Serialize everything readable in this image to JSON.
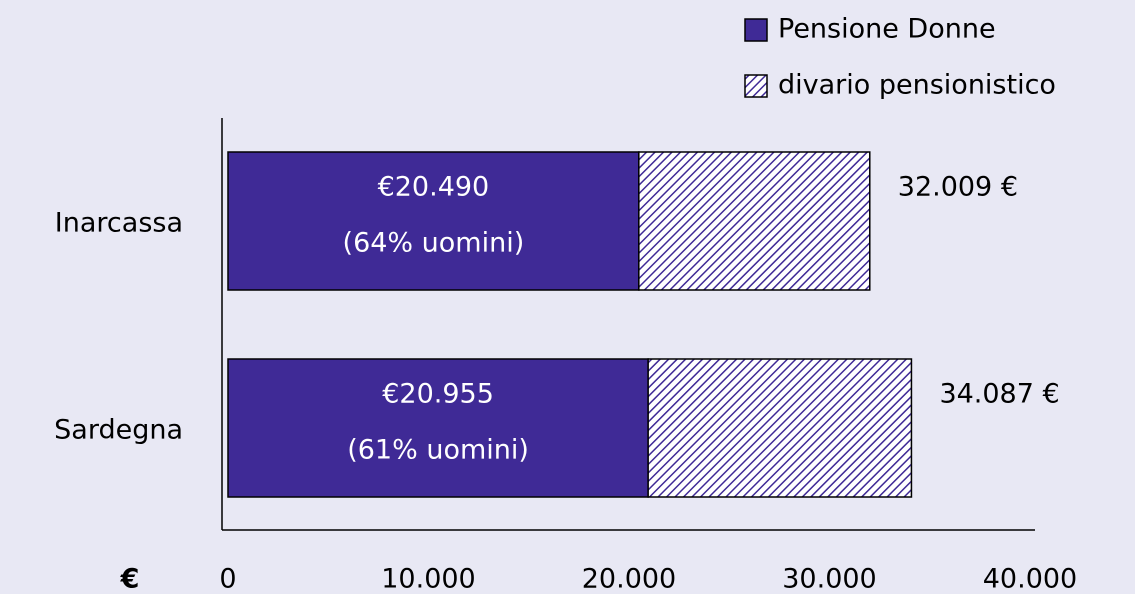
{
  "chart_data": {
    "type": "stacked_barh",
    "categories": [
      "Inarcassa",
      "Sardegna"
    ],
    "series": [
      {
        "name": "Pensione Donne",
        "color": "#3f2a96",
        "values": [
          20490,
          20955
        ],
        "value_labels": [
          "€20.490",
          "€20.955"
        ]
      },
      {
        "name": "divario pensionistico",
        "color": "#3f2a96",
        "hatch": true,
        "values": [
          11519,
          13132
        ]
      }
    ],
    "annotations": [
      [
        "(64% uomini)",
        "32.009 €"
      ],
      [
        "(61% uomini)",
        "34.087 €"
      ]
    ],
    "xlabel": "€",
    "xlim": [
      0,
      40000
    ],
    "xticks": [
      0,
      {
        "value": 10000,
        "label": "10.000"
      },
      {
        "value": 20000,
        "label": "20.000"
      },
      {
        "value": 30000,
        "label": "30.000"
      },
      {
        "value": 40000,
        "label": "40.000"
      }
    ],
    "legend": "top-right"
  }
}
